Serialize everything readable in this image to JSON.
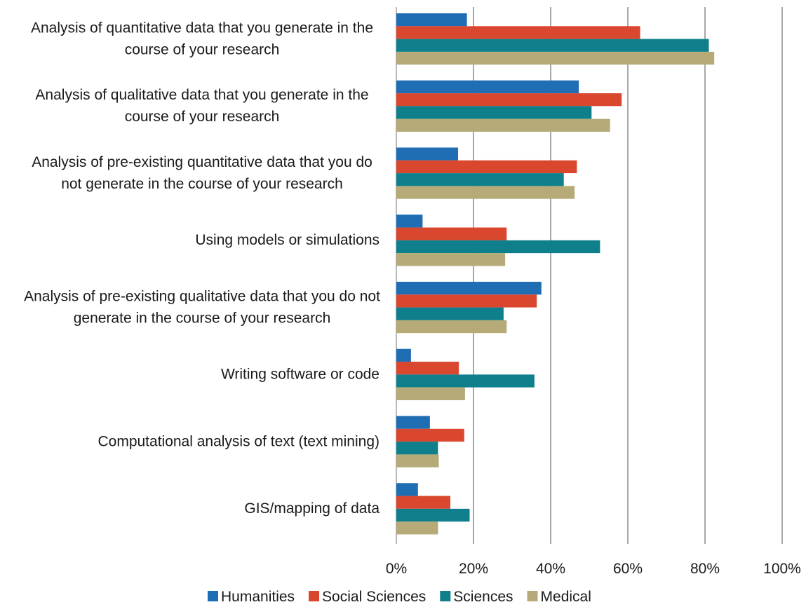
{
  "chart_data": {
    "type": "bar",
    "orientation": "horizontal",
    "categories": [
      [
        "Analysis of quantitative data that you generate in the",
        "course of your research"
      ],
      [
        "Analysis of qualitative data that you generate in the",
        "course of your research"
      ],
      [
        "Analysis of pre-existing quantitative data that you do",
        "not generate in the course of your research"
      ],
      [
        "Using models or simulations"
      ],
      [
        "Analysis of pre-existing qualitative data that you do not",
        "generate in the course of your research"
      ],
      [
        "Writing software or code"
      ],
      [
        "Computational analysis of text (text mining)"
      ],
      [
        "GIS/mapping of data"
      ]
    ],
    "series": [
      {
        "name": "Humanities",
        "color": "#1f6db3",
        "values": [
          18.3,
          47.3,
          16.0,
          6.8,
          37.6,
          3.8,
          8.7,
          5.6
        ]
      },
      {
        "name": "Social Sciences",
        "color": "#d9472f",
        "values": [
          63.2,
          58.4,
          46.8,
          28.6,
          36.4,
          16.2,
          17.6,
          14.0
        ]
      },
      {
        "name": "Sciences",
        "color": "#0f7f8c",
        "values": [
          81.0,
          50.6,
          43.4,
          52.8,
          27.8,
          35.8,
          10.8,
          19.0
        ]
      },
      {
        "name": "Medical",
        "color": "#b5aa78",
        "values": [
          82.4,
          55.4,
          46.2,
          28.2,
          28.6,
          17.8,
          11.0,
          10.8
        ]
      }
    ],
    "xlim": [
      0,
      100
    ],
    "ticks": [
      0,
      20,
      40,
      60,
      80,
      100
    ],
    "tick_labels": [
      "0%",
      "20%",
      "40%",
      "60%",
      "80%",
      "100%"
    ],
    "grid": true,
    "legend_position": "bottom",
    "title": "",
    "xlabel": "",
    "ylabel": ""
  }
}
